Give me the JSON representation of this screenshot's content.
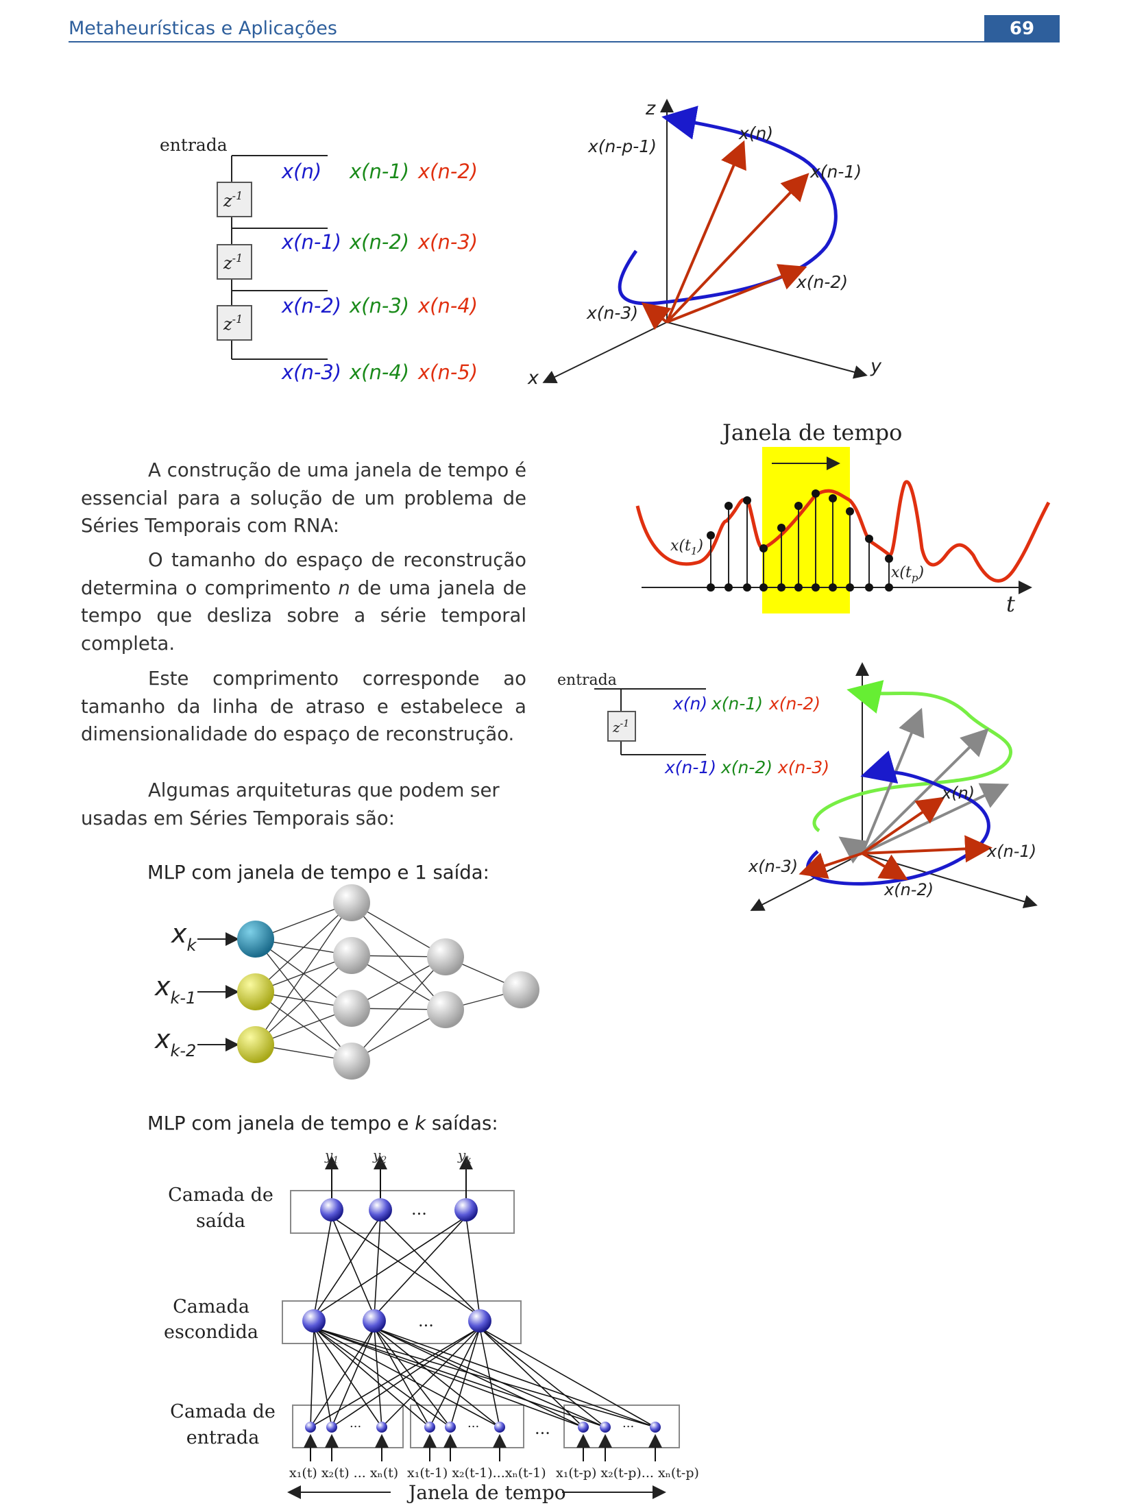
{
  "header": {
    "title": "Metaheurísticas e Aplicações",
    "page_number": "69"
  },
  "fig_delay_line": {
    "input_label": "entrada",
    "delay_box": "z",
    "delay_exp": "-1",
    "rows": [
      [
        "x(n)",
        "x(n-1)",
        "x(n-2)"
      ],
      [
        "x(n-1)",
        "x(n-2)",
        "x(n-3)"
      ],
      [
        "x(n-2)",
        "x(n-3)",
        "x(n-4)"
      ],
      [
        "x(n-3)",
        "x(n-4)",
        "x(n-5)"
      ]
    ],
    "row_colors": [
      "#1a1acc",
      "#1a8a1a",
      "#e03010"
    ]
  },
  "fig_3d_top": {
    "axis_z": "z",
    "axis_x": "x",
    "axis_y": "y",
    "labels": [
      "x(n)",
      "x(n-p-1)",
      "x(n-1)",
      "x(n-2)",
      "x(n-3)"
    ]
  },
  "fig_window": {
    "title": "Janela de tempo",
    "label_t1": "x(t",
    "label_t1_sub": "1",
    "label_tp": "x(t",
    "label_tp_sub": "p",
    "axis_t": "t",
    "highlight_color": "#ffff00",
    "curve_color": "#e03010"
  },
  "paragraphs": {
    "p1": "A construção de uma janela de tempo é essencial para a solução de um problema de Séries Temporais com RNA:",
    "p2_a": "O tamanho do espaço de reconstrução determina o comprimento ",
    "p2_n": "n",
    "p2_b": " de uma janela de tempo que desliza sobre a série temporal completa.",
    "p3": "Este comprimento corresponde ao tamanho da linha de atraso e estabelece a dimensionalidade do espaço de reconstrução.",
    "p4": "Algumas arquiteturas que podem ser usadas em Séries Temporais são:"
  },
  "fig_delay_small": {
    "input_label": "entrada",
    "delay_box": "z",
    "delay_exp": "-1",
    "row1": [
      "x(n)",
      "x(n-1)",
      "x(n-2)"
    ],
    "row2": [
      "x(n-1)",
      "x(n-2)",
      "x(n-3)"
    ]
  },
  "fig_3d_bottom": {
    "labels": [
      "x(n)",
      "x(n-1)",
      "x(n-2)",
      "x(n-3)"
    ]
  },
  "mlp1": {
    "heading_a": "MLP com janela de tempo e 1 saída:",
    "inputs": [
      "x",
      "x",
      "x"
    ],
    "input_subs": [
      "k",
      "k-1",
      "k-2"
    ]
  },
  "mlp2": {
    "heading_a": "MLP com janela de tempo e ",
    "heading_k": "k",
    "heading_b": " saídas:",
    "outputs": [
      "y",
      "y",
      "y"
    ],
    "output_subs": [
      "1",
      "2",
      "k"
    ],
    "layer_output": [
      "Camada de",
      "saída"
    ],
    "layer_hidden": [
      "Camada",
      "escondida"
    ],
    "layer_input": [
      "Camada de",
      "entrada"
    ],
    "input_group_labels": [
      "x₁(t) x₂(t) ... xₙ(t)",
      "x₁(t-1) x₂(t-1)...xₙ(t-1)",
      "x₁(t-p) x₂(t-p)... xₙ(t-p)"
    ],
    "ellipsis": "...",
    "window_label": "Janela de tempo"
  }
}
